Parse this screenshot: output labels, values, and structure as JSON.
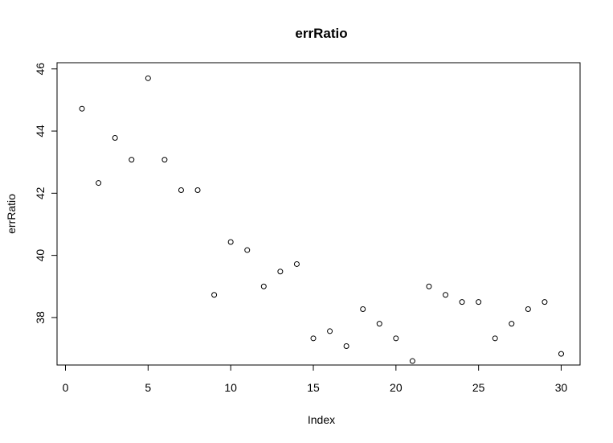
{
  "chart_data": {
    "type": "scatter",
    "title": "errRatio",
    "xlabel": "Index",
    "ylabel": "errRatio",
    "xlim": [
      0,
      30
    ],
    "ylim": [
      36.2,
      46.2
    ],
    "x_ticks": [
      "0",
      "5",
      "10",
      "15",
      "20",
      "25",
      "30"
    ],
    "y_ticks": [
      "38",
      "40",
      "42",
      "44",
      "46"
    ],
    "grid": false,
    "point_style": "open-circle",
    "colors": {
      "points": "#000000",
      "axes": "#000000",
      "background": "#ffffff"
    },
    "x": [
      1,
      2,
      3,
      4,
      5,
      6,
      7,
      8,
      9,
      10,
      11,
      12,
      13,
      14,
      15,
      16,
      17,
      18,
      19,
      20,
      21,
      22,
      23,
      24,
      25,
      26,
      27,
      28,
      29,
      30
    ],
    "y": [
      44.72,
      42.33,
      43.78,
      43.08,
      45.7,
      43.08,
      42.1,
      42.1,
      38.73,
      40.43,
      40.17,
      39.0,
      39.48,
      39.72,
      37.33,
      37.56,
      37.08,
      38.27,
      37.8,
      37.33,
      36.6,
      39.0,
      38.73,
      38.5,
      38.5,
      37.33,
      37.8,
      38.27,
      38.5,
      36.83
    ]
  }
}
